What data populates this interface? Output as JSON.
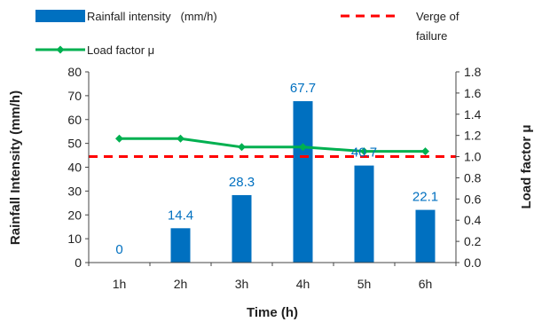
{
  "chart_data": {
    "type": "bar",
    "categories": [
      "1h",
      "2h",
      "3h",
      "4h",
      "5h",
      "6h"
    ],
    "xlabel": "Time (h)",
    "ylabel": "Rainfall Intensity (mm/h)",
    "y2label": "Load factor μ",
    "ylim": [
      0,
      80
    ],
    "y_ticks": [
      0,
      10,
      20,
      30,
      40,
      50,
      60,
      70,
      80
    ],
    "y2lim": [
      0,
      1.8
    ],
    "y2_ticks": [
      "0.0",
      "0.2",
      "0.4",
      "0.6",
      "0.8",
      "1.0",
      "1.2",
      "1.4",
      "1.6",
      "1.8"
    ],
    "grid": false,
    "legend_placement": "top",
    "series": [
      {
        "name": "Rainfall intensity   (mm/h)",
        "type": "bar",
        "axis": "left",
        "color": "#0070C0",
        "values": [
          0,
          14.4,
          28.3,
          67.7,
          40.7,
          22.1
        ],
        "data_labels": [
          "0",
          "14.4",
          "28.3",
          "67.7",
          "40.7",
          "22.1"
        ]
      },
      {
        "name": "Load factor μ",
        "type": "line",
        "axis": "right",
        "color": "#00B050",
        "values": [
          1.17,
          1.17,
          1.09,
          1.09,
          1.05,
          1.05
        ]
      },
      {
        "name_lines": [
          "Verge of",
          "failure"
        ],
        "type": "reference-line",
        "axis": "right",
        "color": "#FF0000",
        "value": 1.0
      }
    ]
  }
}
